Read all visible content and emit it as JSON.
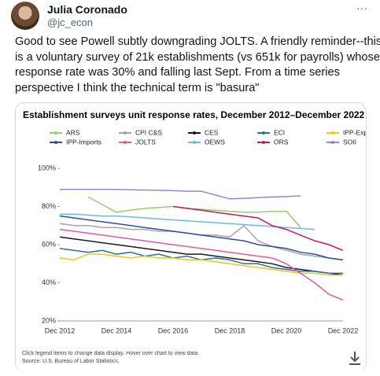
{
  "tweet": {
    "author": "Julia Coronado",
    "handle": "@jc_econ",
    "more": "···",
    "text_lines": [
      "Good to see Powell subtly downgrading JOLTS. A friendly reminder--this",
      "is a voluntary survey of 21k establishments (vs 651k for payrolls) whose",
      "response rate was 30% and falling last Sept. From a time series",
      "perspective I think the technical term is \"basura\""
    ]
  },
  "chart_data": {
    "type": "line",
    "title": "Establishment surveys unit response rates, December 2012–December 2022",
    "categories": [
      "Dec 2012",
      null,
      null,
      null,
      "Dec 2014",
      null,
      null,
      null,
      "Dec 2016",
      null,
      null,
      null,
      "Dec 2018",
      null,
      null,
      null,
      "Dec 2020",
      null,
      null,
      null,
      "Dec 2022"
    ],
    "ylim": [
      20,
      100
    ],
    "yticks": [
      {
        "value": 20,
        "label": "20%"
      },
      {
        "value": 40,
        "label": "40%"
      },
      {
        "value": 60,
        "label": "60%"
      },
      {
        "value": 80,
        "label": "80%"
      },
      {
        "value": 100,
        "label": "100%"
      }
    ],
    "grid": false,
    "legend": "top",
    "series": [
      {
        "name": "ARS",
        "color": "#8fd16a",
        "values": [
          null,
          null,
          85,
          81,
          77,
          78,
          79,
          79.5,
          80,
          79,
          78.5,
          78,
          77.5,
          77,
          77,
          77.5,
          77.5,
          69,
          null,
          null,
          null
        ]
      },
      {
        "name": "CPI C&S",
        "color": "#a6a6a6",
        "values": [
          71,
          70,
          70,
          69,
          69,
          68,
          68,
          67,
          67,
          66,
          65,
          65,
          64,
          70,
          62,
          59,
          57,
          55,
          54,
          53,
          52
        ]
      },
      {
        "name": "CES",
        "color": "#1a1a1a",
        "values": [
          64,
          63,
          62,
          61,
          60,
          59,
          58,
          57,
          56,
          55,
          55,
          54,
          53,
          52,
          51,
          50,
          48,
          47,
          46,
          45,
          44
        ]
      },
      {
        "name": "ECI",
        "color": "#2a6f9e",
        "values": [
          58,
          57,
          56,
          57,
          55,
          56,
          54,
          55,
          53,
          54,
          52,
          53,
          52,
          50,
          50,
          48,
          47,
          46,
          46,
          45,
          45
        ]
      },
      {
        "name": "IPP-Exports",
        "color": "#f0c419",
        "values": [
          53,
          52,
          55,
          55,
          54,
          53,
          54,
          53,
          53,
          52,
          52,
          51,
          50,
          49,
          48,
          47,
          46,
          45,
          45,
          44,
          44
        ]
      },
      {
        "name": "IPP-Imports",
        "color": "#2c4f9e",
        "values": [
          75,
          74,
          73,
          72,
          71,
          70,
          69,
          68,
          67,
          66,
          65,
          64,
          63,
          62,
          60,
          59,
          58,
          56,
          55,
          53,
          52
        ]
      },
      {
        "name": "JOLTS",
        "color": "#e25a9a",
        "values": [
          68,
          67,
          66,
          65,
          64,
          63,
          62,
          61,
          60,
          59,
          58,
          57,
          56,
          55,
          54,
          53,
          50,
          45,
          40,
          34,
          31
        ]
      },
      {
        "name": "OEWS",
        "color": "#6fb8e0",
        "values": [
          76,
          76,
          75.5,
          75,
          75,
          74.5,
          74,
          73.5,
          73,
          72.5,
          72,
          71.5,
          71,
          70.5,
          70,
          69.5,
          69,
          68.5,
          68,
          null,
          null
        ]
      },
      {
        "name": "ORS",
        "color": "#c6195a",
        "values": [
          null,
          null,
          null,
          null,
          null,
          null,
          null,
          null,
          80,
          79,
          78,
          77,
          76,
          75,
          74,
          70,
          68,
          65,
          62,
          60,
          57
        ]
      },
      {
        "name": "SOII",
        "color": "#8b8ad6",
        "values": [
          89,
          89,
          89,
          89,
          89,
          88.8,
          88.6,
          88.5,
          88.3,
          88,
          88,
          86,
          84,
          84.3,
          84.6,
          85,
          85.2,
          85.6,
          null,
          null,
          null
        ]
      }
    ],
    "notes": [
      "Click legend items to change data display. Hover over chart to view data.",
      "Source: U.S. Bureau of Labor Statistics."
    ]
  }
}
